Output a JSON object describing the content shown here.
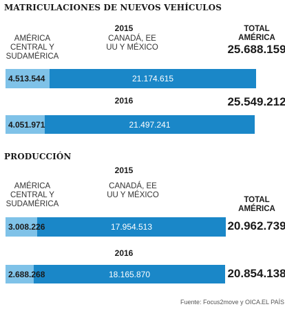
{
  "colors": {
    "latam": "#7fc2e8",
    "northam": "#1a87c8"
  },
  "sections": [
    {
      "title": "MATRICULACIONES DE NUEVOS VEHÍCULOS",
      "region_a": "AMÉRICA CENTRAL Y SUDAMÉRICA",
      "region_b": "CANADÁ, EE UU Y MÉXICO",
      "total_header": "TOTAL AMÉRICA"
    },
    {
      "title": "PRODUCCIÓN",
      "region_a": "AMÉRICA CENTRAL Y SUDAMÉRICA",
      "region_b": "CANADÁ, EE UU Y MÉXICO",
      "total_header": "TOTAL AMÉRICA"
    }
  ],
  "footer": {
    "source": "Fuente: Focus2move y OICA.",
    "brand": "EL PAÍS"
  },
  "chart_data": [
    {
      "type": "bar",
      "title": "MATRICULACIONES DE NUEVOS VEHÍCULOS",
      "categories": [
        "2015",
        "2016"
      ],
      "series": [
        {
          "name": "AMÉRICA CENTRAL Y SUDAMÉRICA",
          "values": [
            4513544,
            4051971
          ],
          "labels": [
            "4.513.544",
            "4.051.971"
          ]
        },
        {
          "name": "CANADÁ, EE UU Y MÉXICO",
          "values": [
            21174615,
            21497241
          ],
          "labels": [
            "21.174.615",
            "21.497.241"
          ]
        }
      ],
      "totals": [
        "25.688.159",
        "25.549.212"
      ]
    },
    {
      "type": "bar",
      "title": "PRODUCCIÓN",
      "categories": [
        "2015",
        "2016"
      ],
      "series": [
        {
          "name": "AMÉRICA CENTRAL Y SUDAMÉRICA",
          "values": [
            3008226,
            2688268
          ],
          "labels": [
            "3.008.226",
            "2.688.268"
          ]
        },
        {
          "name": "CANADÁ, EE UU Y MÉXICO",
          "values": [
            17954513,
            18165870
          ],
          "labels": [
            "17.954.513",
            "18.165.870"
          ]
        }
      ],
      "totals": [
        "20.962.739",
        "20.854.138"
      ]
    }
  ]
}
